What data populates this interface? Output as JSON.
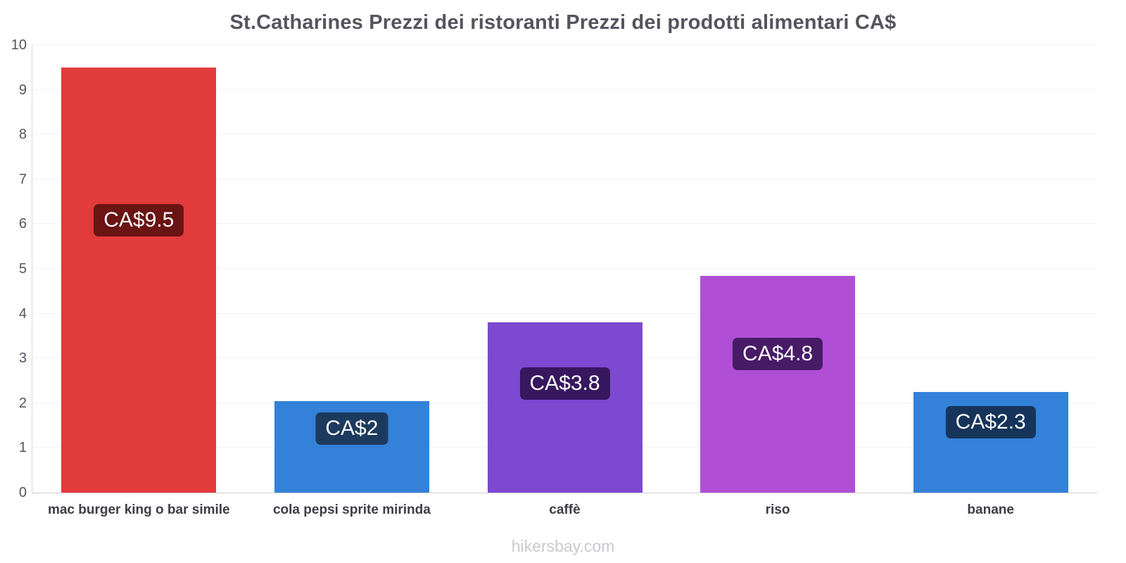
{
  "title": "St.Catharines Prezzi dei ristoranti Prezzi dei prodotti alimentari CA$",
  "footer": "hikersbay.com",
  "chart_data": {
    "type": "bar",
    "title": "St.Catharines Prezzi dei ristoranti Prezzi dei prodotti alimentari CA$",
    "currency": "CA$",
    "categories": [
      "mac burger king o bar simile",
      "cola pepsi sprite mirinda",
      "caffè",
      "riso",
      "banane"
    ],
    "values": [
      9.5,
      2.05,
      3.8,
      4.85,
      2.25
    ],
    "bar_labels": [
      "CA$9.5",
      "CA$2",
      "CA$3.8",
      "CA$4.8",
      "CA$2.3"
    ],
    "bar_colors": [
      "#e23b3b",
      "#3381d8",
      "#7d49d1",
      "#b04fd6",
      "#3381d8"
    ],
    "label_bg_colors": [
      "#6a1414",
      "#1c3a5e",
      "#37175e",
      "#471b66",
      "#16345a"
    ],
    "xlabel": "",
    "ylabel": "",
    "ylim": [
      0,
      10
    ],
    "yticks": [
      0,
      1,
      2,
      3,
      4,
      5,
      6,
      7,
      8,
      9,
      10
    ],
    "grid": true,
    "legend": false
  }
}
